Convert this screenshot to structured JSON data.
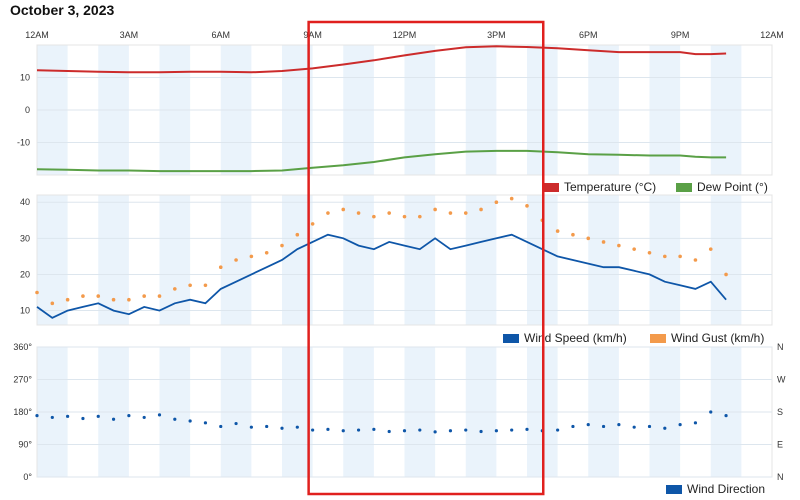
{
  "title": "October 3, 2023",
  "time_ticks": [
    "12AM",
    "3AM",
    "6AM",
    "9AM",
    "12PM",
    "3PM",
    "6PM",
    "9PM",
    "12AM"
  ],
  "colors": {
    "temperature": "#cc2b2b",
    "dew_point": "#5aa046",
    "wind_speed": "#0e56a8",
    "wind_gust": "#f39a4b",
    "wind_direction": "#0e56a8",
    "band": "#eaf3fb",
    "highlight": "#e0201e"
  },
  "highlight_box": {
    "from_hour": 9.0,
    "to_hour": 16.4
  },
  "chart_data": [
    {
      "type": "line",
      "x_unit": "hour of day",
      "xlim": [
        0,
        24
      ],
      "ylim": [
        -20,
        20
      ],
      "yticks": [
        10,
        0,
        -10
      ],
      "legend_placement": "bottom-right",
      "series": [
        {
          "name": "Temperature (°C)",
          "x": [
            0,
            1,
            2,
            3,
            4,
            5,
            6,
            7,
            8,
            9,
            10,
            11,
            12,
            13,
            14,
            15,
            16,
            17,
            18,
            19,
            20,
            21,
            21.5,
            22,
            22.5
          ],
          "values": [
            12.2,
            12.0,
            11.8,
            11.6,
            11.6,
            11.8,
            11.8,
            11.6,
            12.0,
            12.8,
            14.0,
            15.3,
            16.8,
            18.2,
            19.3,
            19.6,
            19.4,
            19.0,
            18.4,
            17.8,
            17.8,
            17.8,
            17.2,
            17.2,
            17.4
          ]
        },
        {
          "name": "Dew Point (°)",
          "x": [
            0,
            1,
            2,
            3,
            4,
            5,
            6,
            7,
            8,
            9,
            10,
            11,
            12,
            13,
            14,
            15,
            16,
            17,
            18,
            19,
            20,
            21,
            21.5,
            22,
            22.5
          ],
          "values": [
            -18.2,
            -18.4,
            -18.6,
            -18.6,
            -18.8,
            -18.8,
            -18.8,
            -18.8,
            -18.6,
            -17.8,
            -17.0,
            -16.0,
            -14.6,
            -13.6,
            -12.8,
            -12.6,
            -12.6,
            -13.0,
            -13.6,
            -13.8,
            -14.0,
            -14.0,
            -14.4,
            -14.6,
            -14.6
          ]
        }
      ]
    },
    {
      "type": "line",
      "x_unit": "hour of day",
      "xlim": [
        0,
        24
      ],
      "ylim": [
        6,
        42
      ],
      "yticks": [
        40,
        30,
        20,
        10
      ],
      "legend_placement": "bottom-right",
      "series": [
        {
          "name": "Wind Speed (km/h)",
          "x": [
            0,
            0.5,
            1,
            1.5,
            2,
            2.5,
            3,
            3.5,
            4,
            4.5,
            5,
            5.5,
            6,
            6.5,
            7,
            7.5,
            8,
            8.5,
            9,
            9.5,
            10,
            10.5,
            11,
            11.5,
            12,
            12.5,
            13,
            13.5,
            14,
            14.5,
            15,
            15.5,
            16,
            16.5,
            17,
            17.5,
            18,
            18.5,
            19,
            19.5,
            20,
            20.5,
            21,
            21.5,
            22,
            22.5
          ],
          "values": [
            11,
            8,
            10,
            11,
            12,
            10,
            9,
            11,
            10,
            12,
            13,
            12,
            16,
            18,
            20,
            22,
            24,
            27,
            29,
            31,
            30,
            28,
            27,
            29,
            28,
            27,
            30,
            27,
            28,
            29,
            30,
            31,
            29,
            27,
            25,
            24,
            23,
            22,
            22,
            21,
            20,
            18,
            17,
            16,
            18,
            13
          ]
        },
        {
          "name": "Wind Gust (km/h)",
          "x": [
            0,
            0.5,
            1,
            1.5,
            2,
            2.5,
            3,
            3.5,
            4,
            4.5,
            5,
            5.5,
            6,
            6.5,
            7,
            7.5,
            8,
            8.5,
            9,
            9.5,
            10,
            10.5,
            11,
            11.5,
            12,
            12.5,
            13,
            13.5,
            14,
            14.5,
            15,
            15.5,
            16,
            16.5,
            17,
            17.5,
            18,
            18.5,
            19,
            19.5,
            20,
            20.5,
            21,
            21.5,
            22,
            22.5
          ],
          "values": [
            15,
            12,
            13,
            14,
            14,
            13,
            13,
            14,
            14,
            16,
            17,
            17,
            22,
            24,
            25,
            26,
            28,
            31,
            34,
            37,
            38,
            37,
            36,
            37,
            36,
            36,
            38,
            37,
            37,
            38,
            40,
            41,
            39,
            35,
            32,
            31,
            30,
            29,
            28,
            27,
            26,
            25,
            25,
            24,
            27,
            20
          ]
        }
      ]
    },
    {
      "type": "scatter",
      "x_unit": "hour of day",
      "xlim": [
        0,
        24
      ],
      "ylim": [
        0,
        360
      ],
      "yticks_left": [
        "360°",
        "270°",
        "180°",
        "90°",
        "0°"
      ],
      "yticks_right": [
        "N",
        "W",
        "S",
        "E",
        "N"
      ],
      "legend_placement": "bottom-right",
      "series": [
        {
          "name": "Wind Direction",
          "x": [
            0,
            0.5,
            1,
            1.5,
            2,
            2.5,
            3,
            3.5,
            4,
            4.5,
            5,
            5.5,
            6,
            6.5,
            7,
            7.5,
            8,
            8.5,
            9,
            9.5,
            10,
            10.5,
            11,
            11.5,
            12,
            12.5,
            13,
            13.5,
            14,
            14.5,
            15,
            15.5,
            16,
            16.5,
            17,
            17.5,
            18,
            18.5,
            19,
            19.5,
            20,
            20.5,
            21,
            21.5,
            22,
            22.5
          ],
          "values": [
            170,
            165,
            168,
            162,
            168,
            160,
            170,
            165,
            172,
            160,
            155,
            150,
            140,
            148,
            138,
            140,
            135,
            138,
            130,
            132,
            128,
            130,
            132,
            126,
            128,
            130,
            125,
            128,
            130,
            126,
            128,
            130,
            132,
            128,
            130,
            140,
            145,
            140,
            145,
            138,
            140,
            135,
            145,
            150,
            180,
            170
          ]
        }
      ]
    }
  ]
}
